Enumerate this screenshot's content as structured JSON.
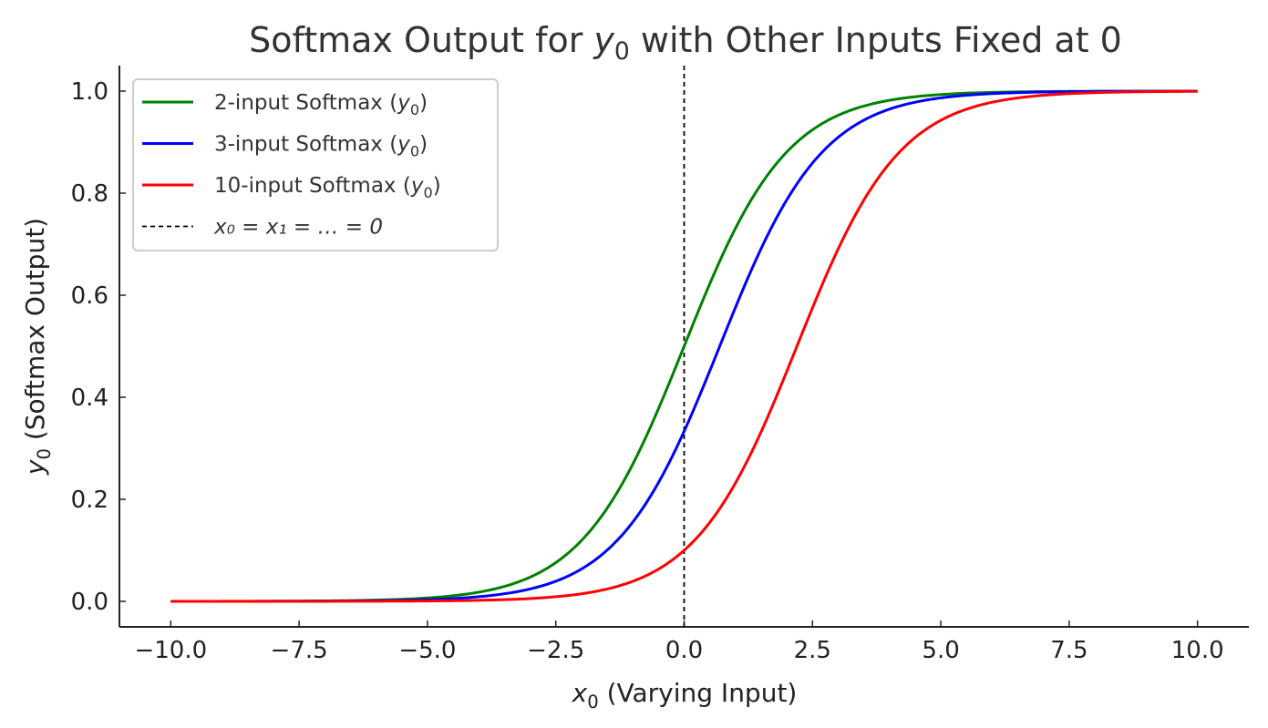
{
  "chart_data": {
    "type": "line",
    "title": {
      "prefix": "Softmax Output for ",
      "var": "y",
      "sub": "0",
      "suffix": " with Other Inputs Fixed at 0"
    },
    "xlabel": {
      "var": "x",
      "sub": "0",
      "suffix": " (Varying Input)"
    },
    "ylabel": {
      "var": "y",
      "sub": "0",
      "suffix": " (Softmax Output)"
    },
    "xlim": [
      -11.0,
      11.0
    ],
    "ylim": [
      -0.05,
      1.05
    ],
    "x_ticks": [
      -10.0,
      -7.5,
      -5.0,
      -2.5,
      0.0,
      2.5,
      5.0,
      7.5,
      10.0
    ],
    "x_tick_labels": [
      "−10.0",
      "−7.5",
      "−5.0",
      "−2.5",
      "0.0",
      "2.5",
      "5.0",
      "7.5",
      "10.0"
    ],
    "y_ticks": [
      0.0,
      0.2,
      0.4,
      0.6,
      0.8,
      1.0
    ],
    "y_tick_labels": [
      "0.0",
      "0.2",
      "0.4",
      "0.6",
      "0.8",
      "1.0"
    ],
    "x_range": [
      -10,
      10
    ],
    "grid": false,
    "legend_position": "top-left",
    "series": [
      {
        "name": "2-input Softmax",
        "n_inputs": 2,
        "color": "#008000",
        "x": [
          -10,
          -7.5,
          -5,
          -2.5,
          0,
          2.5,
          5,
          7.5,
          10
        ],
        "values": [
          0.0,
          0.0006,
          0.0067,
          0.0759,
          0.5,
          0.9241,
          0.9933,
          0.9994,
          1.0
        ]
      },
      {
        "name": "3-input Softmax",
        "n_inputs": 3,
        "color": "#0000ff",
        "x": [
          -10,
          -7.5,
          -5,
          -2.5,
          0,
          2.5,
          5,
          7.5,
          10
        ],
        "values": [
          0.0,
          0.0003,
          0.0034,
          0.0394,
          0.3333,
          0.859,
          0.9866,
          0.9989,
          0.9999
        ]
      },
      {
        "name": "10-input Softmax",
        "n_inputs": 10,
        "color": "#ff0000",
        "x": [
          -10,
          -7.5,
          -5,
          -2.5,
          0,
          2.5,
          5,
          7.5,
          10
        ],
        "values": [
          0.0,
          0.0001,
          0.0007,
          0.009,
          0.1,
          0.5751,
          0.9428,
          0.995,
          0.9996
        ]
      }
    ],
    "legend": [
      {
        "label": "2-input Softmax (",
        "var": "y",
        "sub": "0",
        "close": ")",
        "color": "#008000",
        "style": "solid"
      },
      {
        "label": "3-input Softmax (",
        "var": "y",
        "sub": "0",
        "close": ")",
        "color": "#0000ff",
        "style": "solid"
      },
      {
        "label": "10-input Softmax (",
        "var": "y",
        "sub": "0",
        "close": ")",
        "color": "#ff0000",
        "style": "solid"
      },
      {
        "label": "x₀ = x₁ = … = 0",
        "color": "#000000",
        "style": "dashed"
      }
    ],
    "vline": {
      "x": 0,
      "color": "#000000",
      "style": "dashed"
    }
  }
}
